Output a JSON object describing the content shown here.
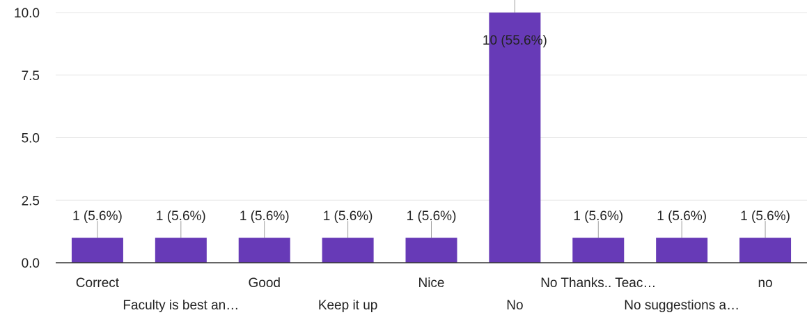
{
  "chart_data": {
    "type": "bar",
    "categories": [
      "Correct",
      "Faculty is best an…",
      "Good",
      "Keep it up",
      "Nice",
      "No",
      "No Thanks.. Teac…",
      "No suggestions a…",
      "no"
    ],
    "values": [
      1,
      1,
      1,
      1,
      1,
      10,
      1,
      1,
      1
    ],
    "data_labels": [
      "1 (5.6%)",
      "1 (5.6%)",
      "1 (5.6%)",
      "1 (5.6%)",
      "1 (5.6%)",
      "10 (55.6%)",
      "1 (5.6%)",
      "1 (5.6%)",
      "1 (5.6%)"
    ],
    "y_ticks": [
      "0.0",
      "2.5",
      "5.0",
      "7.5",
      "10.0"
    ],
    "ylim": [
      0,
      10
    ],
    "grid": true,
    "bar_color": "#673ab7"
  }
}
